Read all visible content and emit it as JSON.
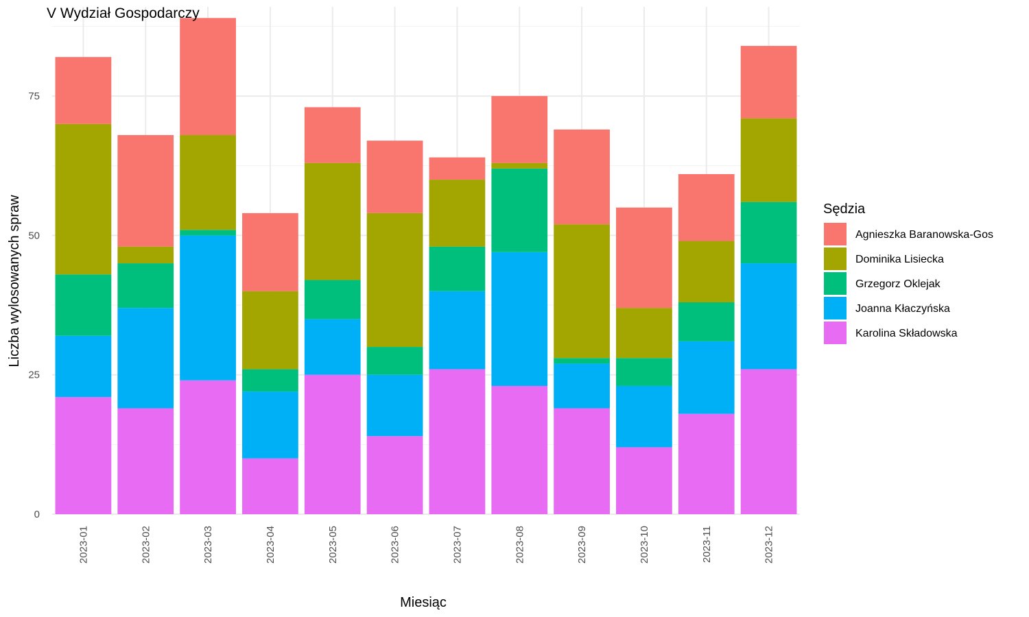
{
  "chart_data": {
    "type": "bar",
    "stacked": true,
    "title": "V Wydział Gospodarczy",
    "xlabel": "Miesiąc",
    "ylabel": "Liczba wylosowanych spraw",
    "ylim": [
      0,
      91
    ],
    "yticks": [
      0,
      25,
      50,
      75
    ],
    "grid": true,
    "legend": {
      "title": "Sędzia",
      "position": "right"
    },
    "categories": [
      "2023-01",
      "2023-02",
      "2023-03",
      "2023-04",
      "2023-05",
      "2023-06",
      "2023-07",
      "2023-08",
      "2023-09",
      "2023-10",
      "2023-11",
      "2023-12"
    ],
    "series": [
      {
        "name": "Karolina Składowska",
        "color": "#E76BF3",
        "values": [
          21,
          19,
          24,
          10,
          25,
          14,
          26,
          23,
          19,
          12,
          18,
          26
        ]
      },
      {
        "name": "Joanna Kłaczyńska",
        "color": "#00B0F6",
        "values": [
          11,
          18,
          26,
          12,
          10,
          11,
          14,
          24,
          8,
          11,
          13,
          19
        ]
      },
      {
        "name": "Grzegorz Oklejak",
        "color": "#00BF7D",
        "values": [
          11,
          8,
          1,
          4,
          7,
          5,
          8,
          15,
          1,
          5,
          7,
          11
        ]
      },
      {
        "name": "Dominika Lisiecka",
        "color": "#A3A500",
        "values": [
          27,
          3,
          17,
          14,
          21,
          24,
          12,
          1,
          24,
          9,
          11,
          15
        ]
      },
      {
        "name": "Agnieszka Baranowska-Gos",
        "color": "#F8766D",
        "values": [
          12,
          20,
          21,
          14,
          10,
          13,
          4,
          12,
          17,
          18,
          12,
          13
        ]
      }
    ],
    "legend_order": [
      "Agnieszka Baranowska-Gos",
      "Dominika Lisiecka",
      "Grzegorz Oklejak",
      "Joanna Kłaczyńska",
      "Karolina Składowska"
    ]
  }
}
